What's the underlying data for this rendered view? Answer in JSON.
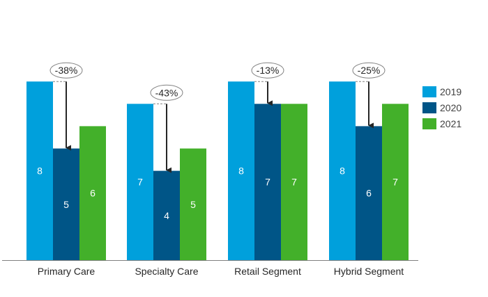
{
  "chart_data": {
    "type": "bar",
    "title": "",
    "xlabel": "",
    "ylabel": "",
    "ylim": [
      0,
      8
    ],
    "grid": false,
    "legend_position": "right",
    "categories": [
      "Primary Care",
      "Specialty Care",
      "Retail Segment",
      "Hybrid Segment"
    ],
    "series": [
      {
        "name": "2019",
        "color": "#00a0dc",
        "values": [
          8,
          7,
          8,
          8
        ]
      },
      {
        "name": "2020",
        "color": "#005587",
        "values": [
          5,
          4,
          7,
          6
        ]
      },
      {
        "name": "2021",
        "color": "#43b02a",
        "values": [
          6,
          5,
          7,
          7
        ]
      }
    ],
    "annotations": [
      "-38%",
      "-43%",
      "-13%",
      "-25%"
    ]
  }
}
